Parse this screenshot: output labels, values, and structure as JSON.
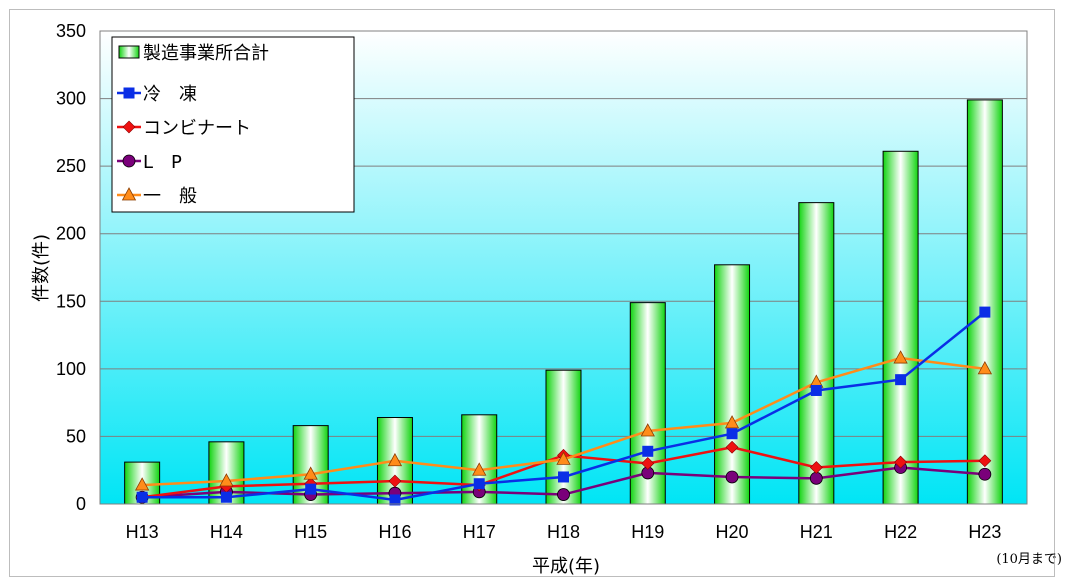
{
  "chart_data": {
    "type": "bar",
    "categories": [
      "H13",
      "H14",
      "H15",
      "H16",
      "H17",
      "H18",
      "H19",
      "H20",
      "H21",
      "H22",
      "H23"
    ],
    "ylabel": "件数(件)",
    "xlabel": "平成(年)",
    "x_note": "(10月まで)",
    "ylim": [
      0,
      350
    ],
    "yticks": [
      0,
      50,
      100,
      150,
      200,
      250,
      300,
      350
    ],
    "grid": true,
    "legend_position": "top-left",
    "background_gradient": [
      "#ffffff",
      "#00e5f5"
    ],
    "bar_series": {
      "name": "製造事業所合計",
      "color": "#11d411",
      "values": [
        31,
        46,
        58,
        64,
        66,
        99,
        149,
        177,
        223,
        261,
        299
      ]
    },
    "series": [
      {
        "name": "冷　凍",
        "color": "#0a2ee6",
        "marker": "square",
        "values": [
          5,
          5,
          11,
          3,
          15,
          20,
          39,
          52,
          84,
          92,
          142
        ]
      },
      {
        "name": "コンビナート",
        "color": "#ee1111",
        "marker": "diamond",
        "values": [
          5,
          13,
          15,
          17,
          14,
          36,
          30,
          42,
          27,
          31,
          32
        ]
      },
      {
        "name": "L　P",
        "color": "#7a007a",
        "marker": "circle",
        "values": [
          5,
          9,
          7,
          8,
          9,
          7,
          23,
          20,
          19,
          27,
          22
        ]
      },
      {
        "name": "一　般",
        "color": "#ff8c1a",
        "marker": "triangle",
        "values": [
          14,
          17,
          22,
          32,
          25,
          33,
          54,
          60,
          90,
          108,
          100
        ]
      }
    ]
  }
}
